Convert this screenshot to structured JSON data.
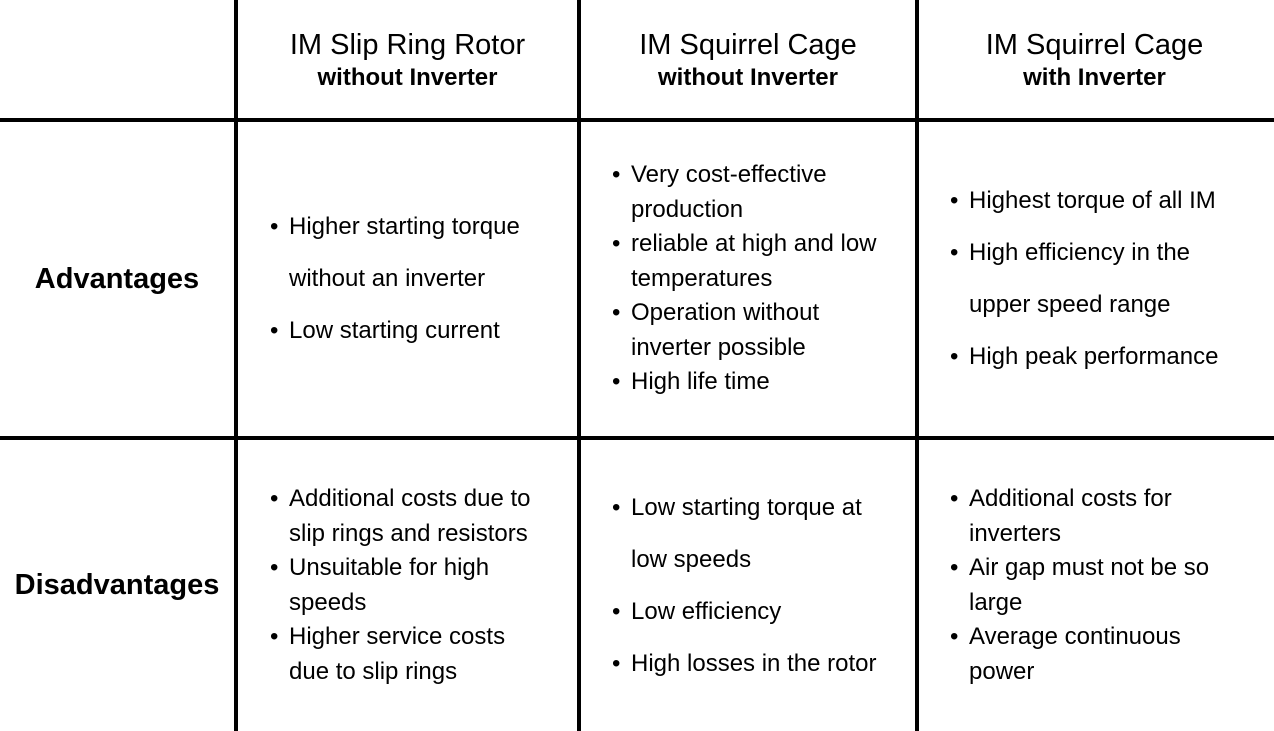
{
  "columns": [
    {
      "title": "IM Slip Ring Rotor",
      "subtitle": "without Inverter"
    },
    {
      "title": "IM Squirrel Cage",
      "subtitle": "without Inverter"
    },
    {
      "title": "IM Squirrel Cage",
      "subtitle": "with Inverter"
    }
  ],
  "rows": [
    {
      "label": "Advantages",
      "cells": [
        [
          "Higher starting torque",
          "without an inverter",
          "Low starting current"
        ],
        [
          "Very cost-effective",
          "production",
          "reliable at high and low",
          "temperatures",
          "Operation without",
          "inverter possible",
          "High life time"
        ],
        [
          "Highest torque of all IM",
          "High efficiency in the",
          "upper speed range",
          "High peak performance"
        ]
      ]
    },
    {
      "label": "Disadvantages",
      "cells": [
        [
          "Additional costs due to",
          "slip rings and resistors",
          "Unsuitable for high",
          "speeds",
          "Higher service costs",
          "due to slip rings"
        ],
        [
          "Low starting torque at",
          "low speeds",
          "Low efficiency",
          "High losses in the rotor"
        ],
        [
          "Additional costs for",
          "inverters",
          "Air gap must not be so",
          "large",
          "Average continuous",
          "power"
        ]
      ]
    }
  ]
}
